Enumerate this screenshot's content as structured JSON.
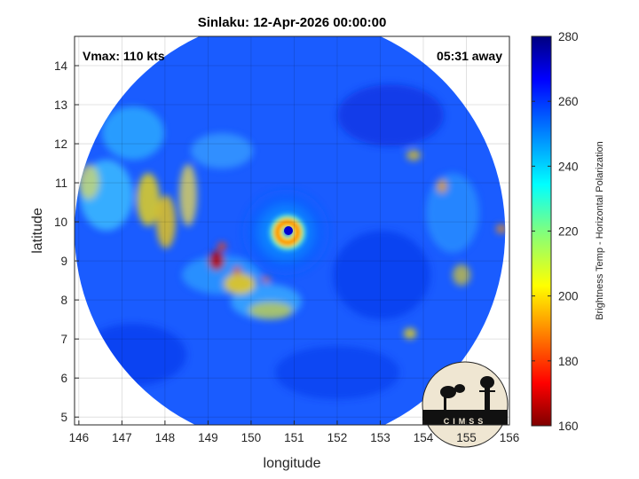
{
  "title": "Sinlaku: 12-Apr-2026 00:00:00",
  "vmax_label": "Vmax: 110 kts",
  "away_label": "05:31 away",
  "logo_text": "CIMSS",
  "map": {
    "xlabel": "longitude",
    "ylabel": "latitude",
    "xlim": [
      145.9,
      156.0
    ],
    "ylim": [
      4.8,
      14.75
    ],
    "x_ticks": [
      146,
      147,
      148,
      149,
      150,
      151,
      152,
      153,
      154,
      155,
      156
    ],
    "y_ticks": [
      5,
      6,
      7,
      8,
      9,
      10,
      11,
      12,
      13,
      14
    ],
    "grid": true,
    "swath_center": [
      150.9,
      9.75
    ],
    "swath_radius_deg": 5.0,
    "eye_center": [
      150.95,
      9.75
    ]
  },
  "colorbar": {
    "label": "Brightness Temp - Horizontal Polarization",
    "min": 160,
    "max": 280,
    "ticks": [
      160,
      180,
      200,
      220,
      240,
      260,
      280
    ],
    "colormap": "jet",
    "colors": [
      "#7f0000",
      "#ff0000",
      "#ffff00",
      "#00ffff",
      "#0000ff",
      "#00007f"
    ]
  }
}
